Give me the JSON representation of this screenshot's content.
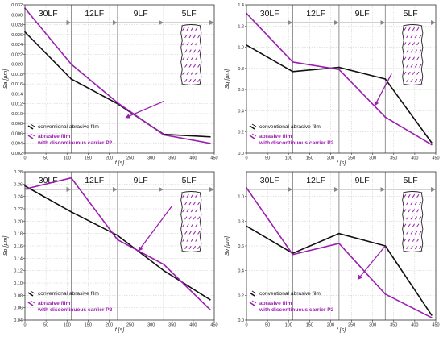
{
  "figure": {
    "stage_labels": [
      "30LF",
      "12LF",
      "9LF",
      "5LF"
    ],
    "legend": {
      "conventional": "conventional abrasive film",
      "discontinuous_line1": "abrasive film",
      "discontinuous_line2": "with discontinuous carrier P2"
    },
    "colors": {
      "conventional": "#111111",
      "discontinuous": "#9b1fb0",
      "arrow": "#9b1fb0",
      "grid": "#c8c8c8",
      "stage_lines": "#888888"
    },
    "inset_icon": "abrasive-film-discontinuous-carrier-sketch"
  },
  "chart_data": [
    {
      "type": "line",
      "ylabel": "Sa [µm]",
      "xlabel": "t [s]",
      "xlim": [
        0,
        450
      ],
      "ylim": [
        0.002,
        0.032
      ],
      "xticks": [
        0,
        50,
        100,
        150,
        200,
        250,
        300,
        350,
        400,
        450
      ],
      "yticks": [
        0.002,
        0.004,
        0.006,
        0.008,
        0.01,
        0.012,
        0.014,
        0.016,
        0.018,
        0.02,
        0.022,
        0.024,
        0.026,
        0.028,
        0.03,
        0.032
      ],
      "ytick_labels": [
        "0.002",
        "0.004",
        "0.006",
        "0.008",
        "0.010",
        "0.012",
        "0.014",
        "0.016",
        "0.018",
        "0.020",
        "0.022",
        "0.024",
        "0.026",
        "0.028",
        "0.030",
        "0.032"
      ],
      "stage_boundaries": [
        110,
        220,
        330
      ],
      "series": [
        {
          "key": "conventional",
          "x": [
            0,
            110,
            220,
            330,
            440
          ],
          "values": [
            0.0265,
            0.017,
            0.012,
            0.0058,
            0.0053
          ]
        },
        {
          "key": "discontinuous",
          "x": [
            0,
            110,
            220,
            330,
            440
          ],
          "values": [
            0.0313,
            0.02,
            0.0122,
            0.0057,
            0.004
          ]
        }
      ],
      "arrow": {
        "from": [
          330,
          0.0125
        ],
        "to": [
          240,
          0.0092
        ]
      },
      "grid": true,
      "legend_position": "bottom-left"
    },
    {
      "type": "line",
      "ylabel": "Sq [µm]",
      "xlabel": "t [s]",
      "xlim": [
        0,
        450
      ],
      "ylim": [
        0.0,
        1.4
      ],
      "xticks": [
        0,
        50,
        100,
        150,
        200,
        250,
        300,
        350,
        400,
        450
      ],
      "yticks": [
        0.0,
        0.2,
        0.4,
        0.6,
        0.8,
        1.0,
        1.2,
        1.4
      ],
      "ytick_labels": [
        "0.0",
        "0.2",
        "0.4",
        "0.6",
        "0.8",
        "1.0",
        "1.2",
        "1.4"
      ],
      "stage_boundaries": [
        110,
        220,
        330
      ],
      "series": [
        {
          "key": "conventional",
          "x": [
            0,
            110,
            220,
            330,
            440
          ],
          "values": [
            1.02,
            0.77,
            0.81,
            0.7,
            0.1
          ]
        },
        {
          "key": "discontinuous",
          "x": [
            0,
            110,
            220,
            330,
            440
          ],
          "values": [
            1.32,
            0.86,
            0.79,
            0.34,
            0.08
          ]
        }
      ],
      "arrow": {
        "from": [
          345,
          0.75
        ],
        "to": [
          305,
          0.45
        ]
      },
      "grid": true,
      "legend_position": "bottom-left"
    },
    {
      "type": "line",
      "ylabel": "Sp [µm]",
      "xlabel": "t [s]",
      "xlim": [
        0,
        450
      ],
      "ylim": [
        0.04,
        0.28
      ],
      "xticks": [
        0,
        50,
        100,
        150,
        200,
        250,
        300,
        350,
        400,
        450
      ],
      "yticks": [
        0.04,
        0.06,
        0.08,
        0.1,
        0.12,
        0.14,
        0.16,
        0.18,
        0.2,
        0.22,
        0.24,
        0.26,
        0.28
      ],
      "ytick_labels": [
        "0.04",
        "0.06",
        "0.08",
        "0.10",
        "0.12",
        "0.14",
        "0.16",
        "0.18",
        "0.20",
        "0.22",
        "0.24",
        "0.26",
        "0.28"
      ],
      "stage_boundaries": [
        110,
        220,
        330
      ],
      "series": [
        {
          "key": "conventional",
          "x": [
            0,
            110,
            220,
            330,
            440
          ],
          "values": [
            0.257,
            0.215,
            0.177,
            0.12,
            0.073
          ]
        },
        {
          "key": "discontinuous",
          "x": [
            0,
            110,
            220,
            330,
            440
          ],
          "values": [
            0.252,
            0.27,
            0.17,
            0.13,
            0.057
          ]
        }
      ],
      "arrow": {
        "from": [
          350,
          0.225
        ],
        "to": [
          270,
          0.152
        ]
      },
      "grid": true,
      "legend_position": "bottom-left"
    },
    {
      "type": "line",
      "ylabel": "Sv [µm]",
      "xlabel": "t [s]",
      "xlim": [
        0,
        450
      ],
      "ylim": [
        0.0,
        1.2
      ],
      "xticks": [
        0,
        50,
        100,
        150,
        200,
        250,
        300,
        350,
        400,
        450
      ],
      "yticks": [
        0.0,
        0.2,
        0.4,
        0.6,
        0.8,
        1.0
      ],
      "ytick_labels": [
        "0.0",
        "0.2",
        "0.4",
        "0.6",
        "0.8",
        "1.0"
      ],
      "stage_boundaries": [
        110,
        220,
        330
      ],
      "series": [
        {
          "key": "conventional",
          "x": [
            0,
            110,
            220,
            330,
            440
          ],
          "values": [
            0.76,
            0.54,
            0.7,
            0.6,
            0.04
          ]
        },
        {
          "key": "discontinuous",
          "x": [
            0,
            110,
            220,
            330,
            440
          ],
          "values": [
            1.07,
            0.53,
            0.62,
            0.21,
            0.02
          ]
        }
      ],
      "arrow": {
        "from": [
          330,
          0.6
        ],
        "to": [
          265,
          0.33
        ]
      },
      "grid": true,
      "legend_position": "bottom-left"
    }
  ]
}
